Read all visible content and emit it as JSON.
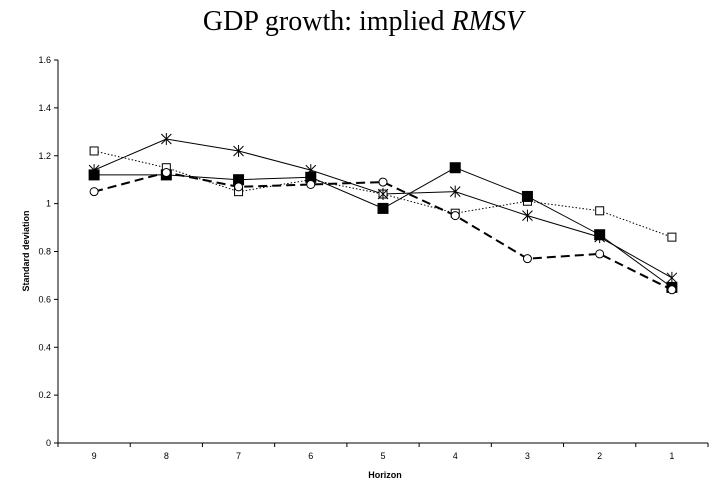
{
  "chart_data": {
    "type": "line",
    "title_prefix": "GDP growth: implied ",
    "title_emph": "RMSV",
    "xlabel": "Horizon",
    "ylabel": "Standard deviation",
    "categories": [
      "9",
      "8",
      "7",
      "6",
      "5",
      "4",
      "3",
      "2",
      "1"
    ],
    "ylim": [
      0,
      1.6
    ],
    "yticks": [
      "0",
      "0.2",
      "0.4",
      "0.6",
      "0.8",
      "1",
      "1.2",
      "1.4",
      "1.6"
    ],
    "grid": false,
    "legend": "none",
    "series": [
      {
        "marker": "open-square",
        "line": "dotted",
        "color": "#000000",
        "values": [
          1.22,
          1.15,
          1.05,
          1.1,
          1.04,
          0.96,
          1.01,
          0.97,
          0.86
        ]
      },
      {
        "marker": "star",
        "line": "solid",
        "color": "#000000",
        "values": [
          1.14,
          1.27,
          1.22,
          1.14,
          1.04,
          1.05,
          0.95,
          0.86,
          0.69
        ]
      },
      {
        "marker": "filled-square",
        "line": "solid",
        "color": "#000000",
        "values": [
          1.12,
          1.12,
          1.1,
          1.11,
          0.98,
          1.15,
          1.03,
          0.87,
          0.65
        ]
      },
      {
        "marker": "open-circle",
        "line": "dashed",
        "color": "#000000",
        "values": [
          1.05,
          1.13,
          1.07,
          1.08,
          1.09,
          0.95,
          0.77,
          0.79,
          0.64
        ]
      }
    ]
  }
}
